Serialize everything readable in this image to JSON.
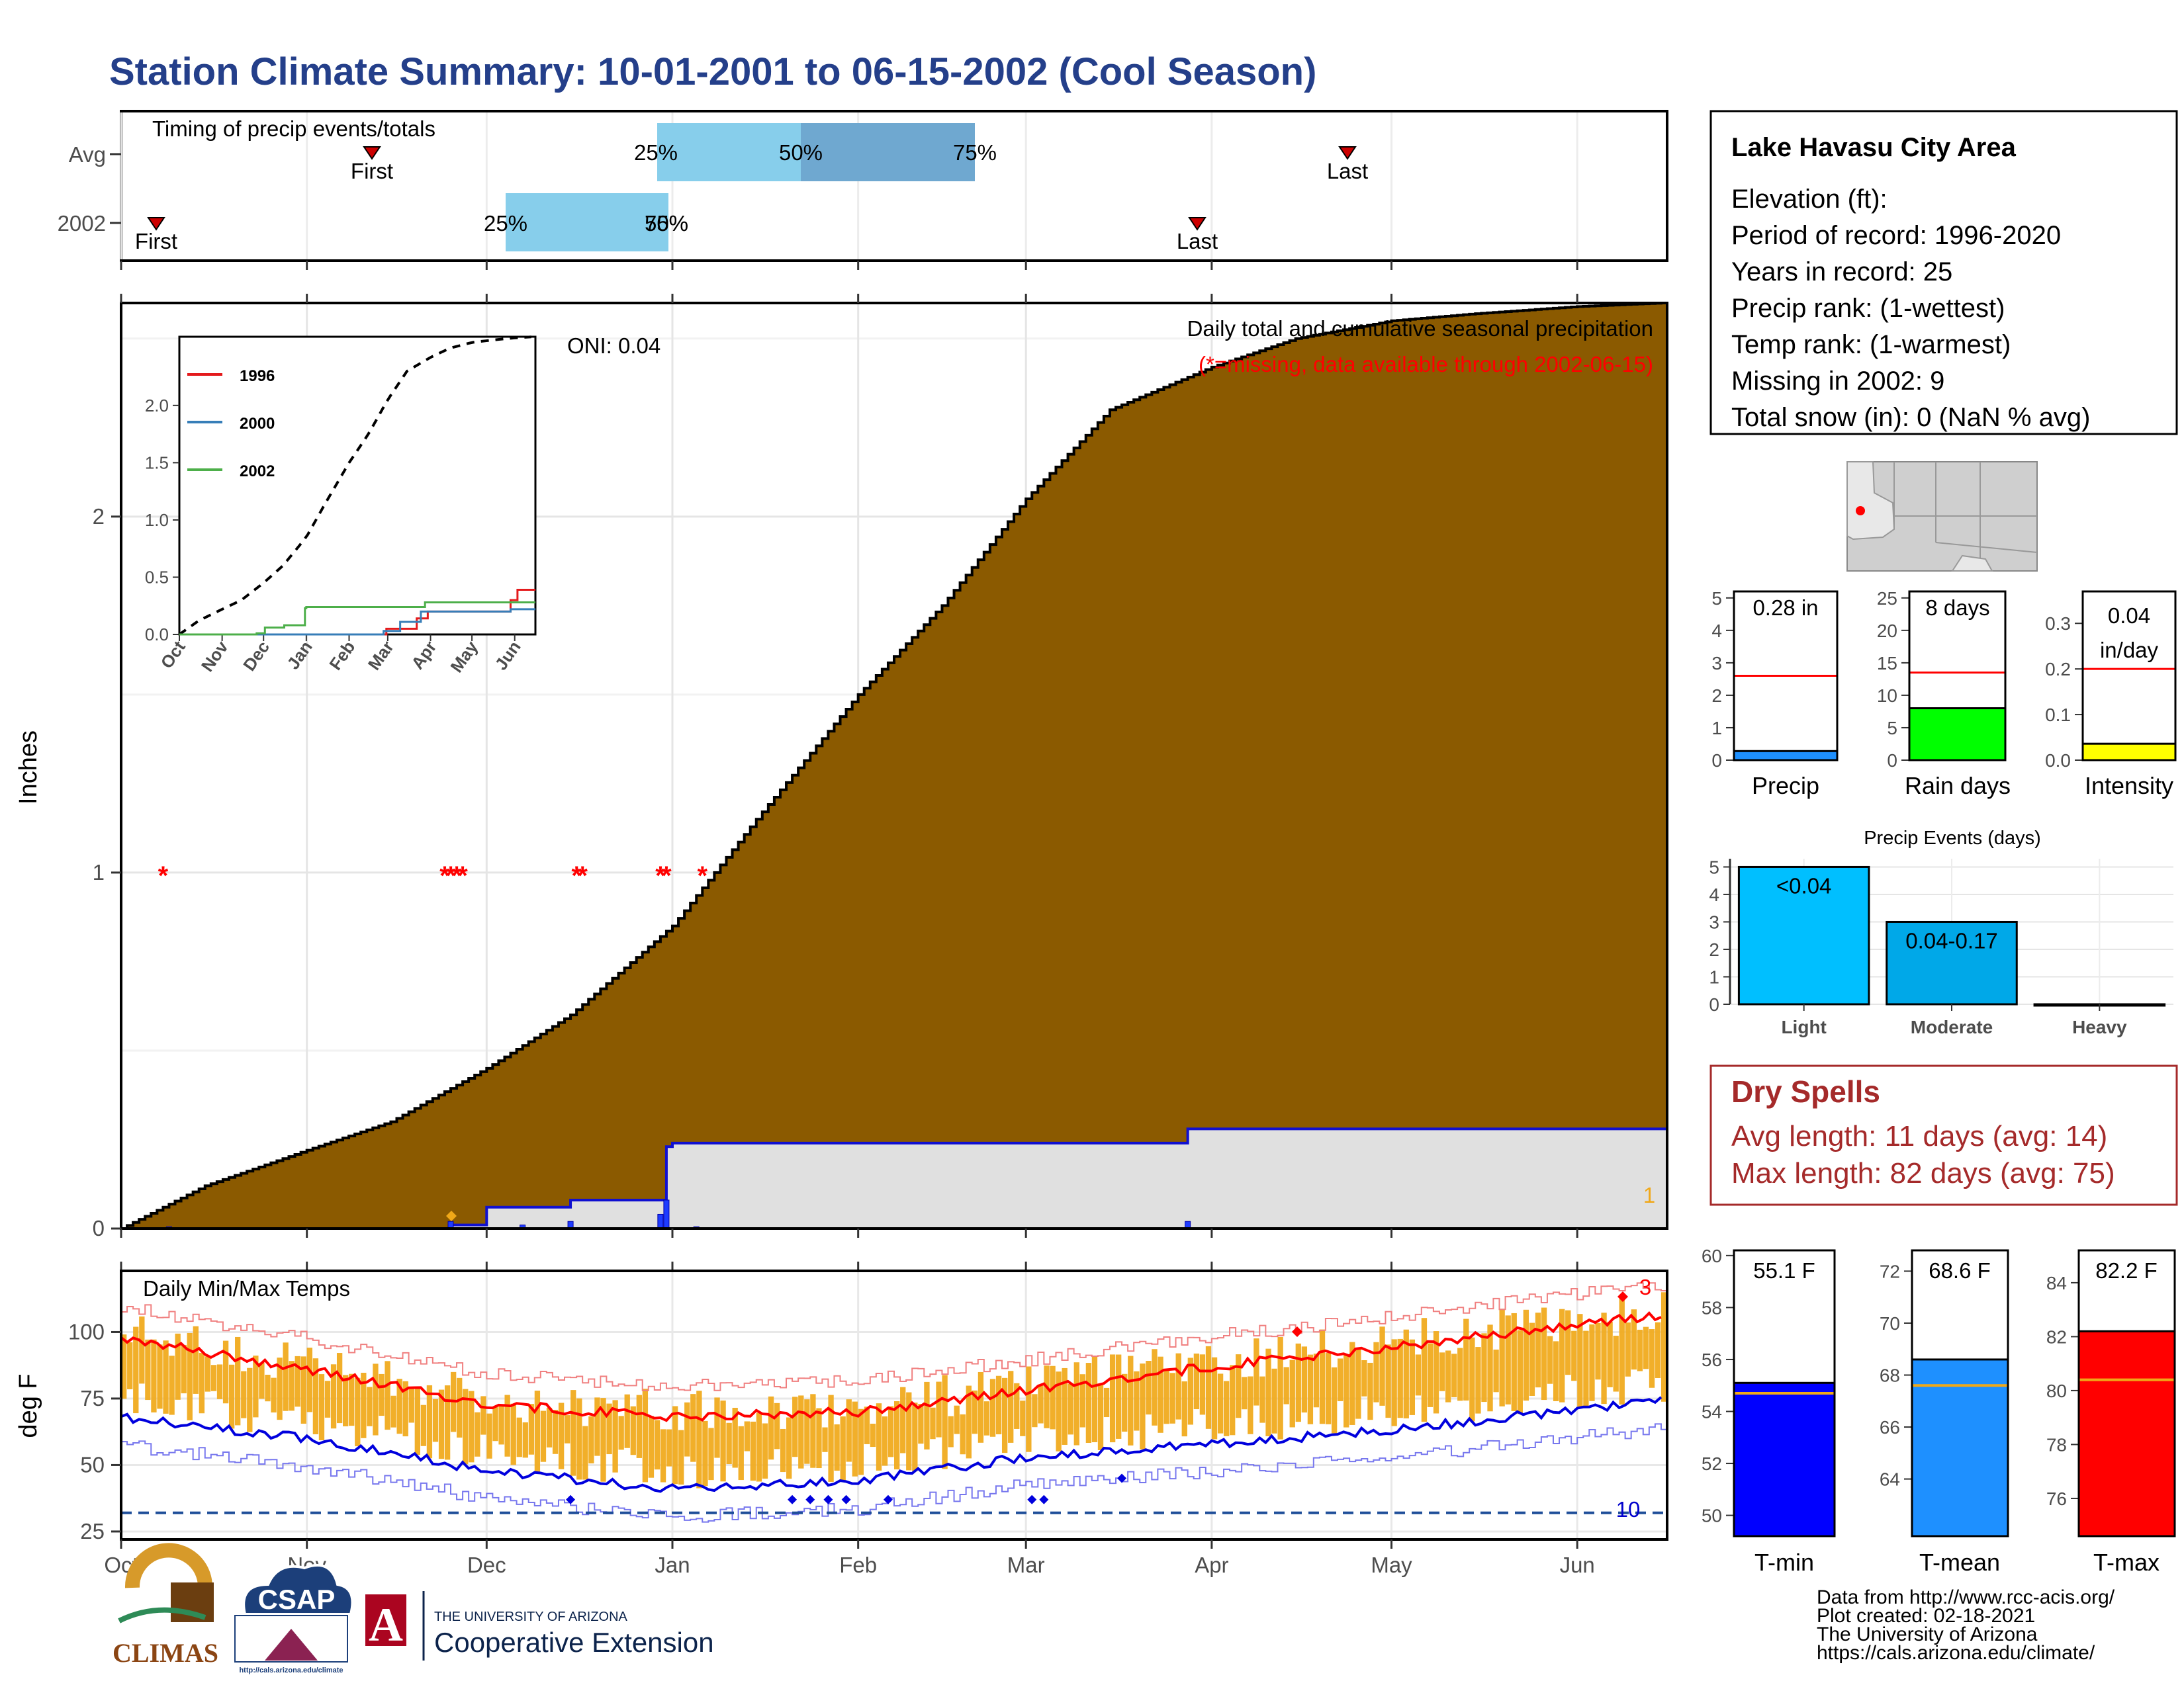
{
  "title": "Station Climate Summary: 10-01-2001 to 06-15-2002 (Cool Season)",
  "colors": {
    "title": "#243f8a",
    "cum_fill": "#8b5a00",
    "avg_fill": "#e0e0e0",
    "blue": "#1010d0",
    "red": "#ff0000",
    "orange": "#f0a818",
    "dry": "#a52a2a"
  },
  "timing": {
    "title": "Timing of precip events/totals",
    "rows": [
      "Avg",
      "2002"
    ],
    "markers": {
      "first": "First",
      "last": "Last",
      "q25": "25%",
      "q50": "50%",
      "q75": "75%",
      "q50b": "50%",
      "q75b": "75%"
    }
  },
  "month_ticks": [
    "Oct",
    "Nov",
    "Dec",
    "Jan",
    "Feb",
    "Mar",
    "Apr",
    "May",
    "Jun"
  ],
  "precip_panel": {
    "title": "Daily total and cumulative seasonal precipitation",
    "missing_note": "(*=missing, data available through 2002-06-15)",
    "oni": "ONI: 0.04",
    "ylabel": "Inches",
    "yticks": [
      "0",
      "1",
      "2"
    ],
    "count_label": "1",
    "inset": {
      "legend": [
        "1996",
        "2000",
        "2002"
      ],
      "yticks": [
        "0.0",
        "0.5",
        "1.0",
        "1.5",
        "2.0"
      ],
      "xticks": [
        "Oct",
        "Nov",
        "Dec",
        "Jan",
        "Feb",
        "Mar",
        "Apr",
        "May",
        "Jun"
      ]
    }
  },
  "temp_panel": {
    "title": "Daily Min/Max Temps",
    "ylabel": "deg F",
    "yticks": [
      "25",
      "50",
      "75",
      "100"
    ],
    "count_hi": "3",
    "count_lo": "10"
  },
  "station": {
    "name": "Lake Havasu City Area",
    "lines": [
      "Elevation (ft):",
      "Period of record: 1996-2020",
      "Years in record: 25",
      "Precip rank:  (1-wettest)",
      "Temp rank:  (1-warmest)",
      "Missing in 2002: 9",
      "Total snow (in): 0 (NaN % avg)"
    ]
  },
  "small_bars": {
    "precip": {
      "label": "Precip",
      "value_text": "0.28 in",
      "yticks": [
        "0",
        "1",
        "2",
        "3",
        "4",
        "5"
      ]
    },
    "raindays": {
      "label": "Rain days",
      "value_text": "8 days",
      "yticks": [
        "0",
        "5",
        "10",
        "15",
        "20",
        "25"
      ]
    },
    "intensity": {
      "label": "Intensity",
      "value_text": "0.04",
      "value_text2": "in/day",
      "yticks": [
        "0.0",
        "0.1",
        "0.2",
        "0.3"
      ]
    }
  },
  "events": {
    "title": "Precip Events (days)",
    "categories": [
      "Light",
      "Moderate",
      "Heavy"
    ],
    "bar_labels": [
      "<0.04",
      "0.04-0.17",
      ""
    ],
    "yticks": [
      "0",
      "1",
      "2",
      "3",
      "4",
      "5"
    ]
  },
  "dry_spells": {
    "title": "Dry Spells",
    "avg": "Avg length: 11 days (avg: 14)",
    "max": "Max length: 82 days (avg: 75)"
  },
  "temp_bars": {
    "tmin": {
      "label": "T-min",
      "value_text": "55.1 F",
      "yticks": [
        "50",
        "52",
        "54",
        "56",
        "58",
        "60"
      ]
    },
    "tmean": {
      "label": "T-mean",
      "value_text": "68.6 F",
      "yticks": [
        "64",
        "66",
        "68",
        "70",
        "72"
      ]
    },
    "tmax": {
      "label": "T-max",
      "value_text": "82.2 F",
      "yticks": [
        "76",
        "78",
        "80",
        "82",
        "84"
      ]
    }
  },
  "footer": [
    "Data from http://www.rcc-acis.org/",
    "Plot created: 02-18-2021",
    "The University of Arizona",
    "https://cals.arizona.edu/climate/"
  ],
  "logos": {
    "climas": "CLIMAS",
    "csap": "CSAP",
    "csap_url": "http://cals.arizona.edu/climate",
    "ua_small": "THE UNIVERSITY OF ARIZONA",
    "ua_big": "Cooperative Extension",
    "ua_letter": "A"
  },
  "chart_data": [
    {
      "type": "area",
      "title": "Daily total and cumulative seasonal precipitation",
      "ylabel": "Inches",
      "ylim": [
        0,
        2.6
      ],
      "series": [
        {
          "name": "cumulative average (1996-2020)",
          "x": [
            "10-01",
            "10-15",
            "11-01",
            "11-15",
            "12-01",
            "12-15",
            "01-01",
            "01-15",
            "02-01",
            "02-15",
            "03-01",
            "03-15",
            "04-01",
            "04-15",
            "05-01",
            "05-15",
            "06-01",
            "06-15"
          ],
          "values": [
            0.0,
            0.12,
            0.22,
            0.3,
            0.45,
            0.6,
            0.85,
            1.15,
            1.5,
            1.75,
            2.05,
            2.3,
            2.42,
            2.5,
            2.55,
            2.57,
            2.59,
            2.6
          ]
        },
        {
          "name": "2002 cumulative",
          "x": [
            "10-01",
            "11-25",
            "12-01",
            "12-15",
            "12-31",
            "01-01",
            "03-28",
            "06-15"
          ],
          "values": [
            0.0,
            0.01,
            0.06,
            0.08,
            0.23,
            0.24,
            0.28,
            0.28
          ]
        }
      ]
    },
    {
      "type": "line",
      "title": "Daily Min/Max Temps",
      "ylabel": "deg F",
      "ylim": [
        22,
        123
      ],
      "series": [
        {
          "name": "avg max",
          "x": [
            "10-01",
            "11-01",
            "12-01",
            "01-01",
            "02-01",
            "03-01",
            "04-01",
            "05-01",
            "06-01",
            "06-15"
          ],
          "values": [
            98,
            86,
            73,
            68,
            70,
            78,
            87,
            94,
            103,
            106
          ]
        },
        {
          "name": "avg min",
          "x": [
            "10-01",
            "11-01",
            "12-01",
            "01-01",
            "02-01",
            "03-01",
            "04-01",
            "05-01",
            "06-01",
            "06-15"
          ],
          "values": [
            68,
            60,
            48,
            41,
            44,
            53,
            58,
            63,
            71,
            74
          ]
        },
        {
          "name": "freeze threshold",
          "x": [
            "10-01",
            "06-15"
          ],
          "values": [
            32,
            32
          ]
        }
      ]
    },
    {
      "type": "bar",
      "categories": [
        "Light",
        "Moderate",
        "Heavy"
      ],
      "values": [
        5,
        3,
        0
      ],
      "ylim": [
        0,
        5.3
      ]
    },
    {
      "type": "bar",
      "categories": [
        "Precip"
      ],
      "values": [
        0.28
      ],
      "avg": 2.6,
      "ylim": [
        0,
        5.2
      ]
    },
    {
      "type": "bar",
      "categories": [
        "Rain days"
      ],
      "values": [
        8
      ],
      "avg": 13.5,
      "ylim": [
        0,
        26
      ]
    },
    {
      "type": "bar",
      "categories": [
        "Intensity"
      ],
      "values": [
        0.036
      ],
      "avg": 0.2,
      "ylim": [
        0,
        0.37
      ]
    },
    {
      "type": "bar",
      "categories": [
        "T-min"
      ],
      "values": [
        55.1
      ],
      "avg": 54.7,
      "ylim": [
        49.2,
        60.2
      ]
    },
    {
      "type": "bar",
      "categories": [
        "T-mean"
      ],
      "values": [
        68.6
      ],
      "avg": 67.6,
      "ylim": [
        61.8,
        72.8
      ]
    },
    {
      "type": "bar",
      "categories": [
        "T-max"
      ],
      "values": [
        82.2
      ],
      "avg": 80.4,
      "ylim": [
        74.6,
        85.2
      ]
    }
  ]
}
